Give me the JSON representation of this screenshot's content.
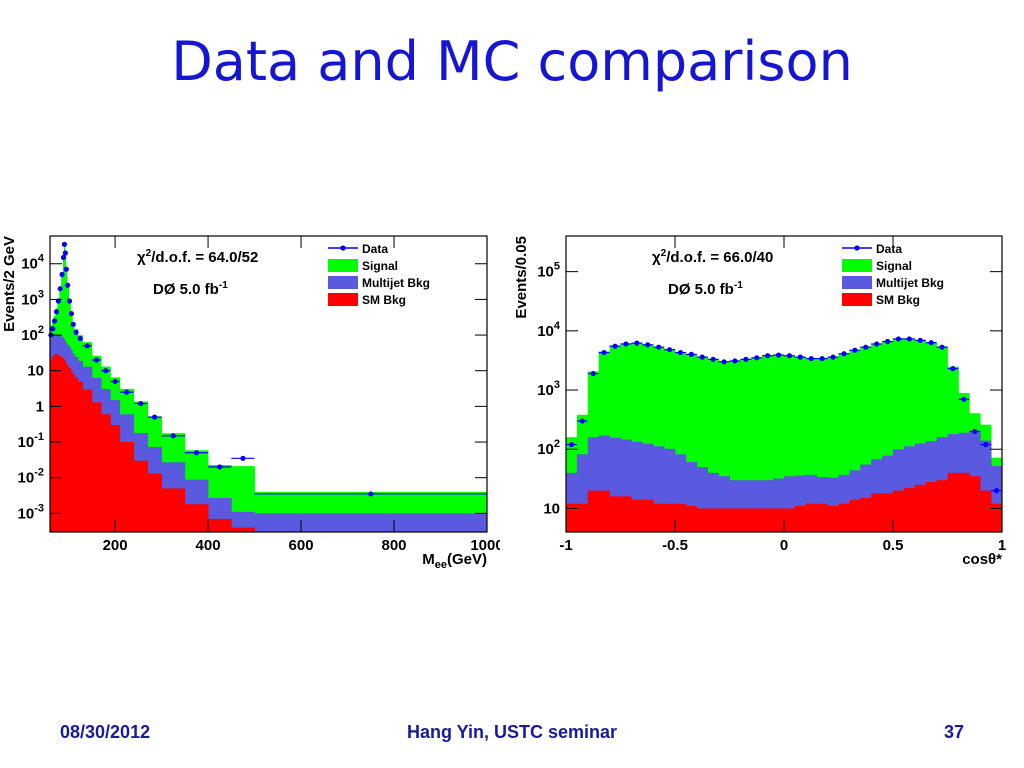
{
  "slide": {
    "title": "Data and MC comparison",
    "footer_date": "08/30/2012",
    "footer_center": "Hang Yin, USTC seminar",
    "page_number": "37"
  },
  "colors": {
    "title": "#1515d4",
    "signal": "#00ff00",
    "multijet": "#5a5ae0",
    "sm_bkg": "#ff0000",
    "data": "#0000ff"
  },
  "chart_data": [
    {
      "type": "histogram",
      "yscale": "log",
      "xlabel": "M_ee(GeV)",
      "xlabel_main": "M",
      "xlabel_sub": "ee",
      "xlabel_unit": "(GeV)",
      "ylabel": "Events/2 GeV",
      "xlim": [
        60,
        1000
      ],
      "ylim": [
        0.0003,
        60000
      ],
      "x_ticks": [
        200,
        400,
        600,
        800,
        1000
      ],
      "y_ticks": [
        {
          "value": 10000,
          "base": "10",
          "exp": "4"
        },
        {
          "value": 1000,
          "base": "10",
          "exp": "3"
        },
        {
          "value": 100,
          "base": "10",
          "exp": "2"
        },
        {
          "value": 10,
          "base": "10",
          "exp": ""
        },
        {
          "value": 1,
          "base": "1",
          "exp": ""
        },
        {
          "value": 0.1,
          "base": "10",
          "exp": "-1"
        },
        {
          "value": 0.01,
          "base": "10",
          "exp": "-2"
        },
        {
          "value": 0.001,
          "base": "10",
          "exp": "-3"
        }
      ],
      "chi2": {
        "prefix": "χ",
        "sup": "2",
        "rest": "/d.o.f. = 64.0/52"
      },
      "lumi": {
        "text": "DØ 5.0 fb",
        "sup": "-1"
      },
      "legend": [
        "Data",
        "Signal",
        "Multijet Bkg",
        "SM Bkg"
      ],
      "bin_edges": [
        60,
        64,
        68,
        72,
        76,
        80,
        84,
        88,
        90,
        92,
        94,
        96,
        100,
        104,
        108,
        112,
        120,
        130,
        150,
        170,
        190,
        210,
        240,
        270,
        300,
        350,
        400,
        450,
        500,
        1000
      ],
      "sm_bkg": [
        20,
        25,
        28,
        30,
        28,
        26,
        24,
        22,
        20,
        18,
        16,
        14,
        12,
        10,
        8,
        6.5,
        5,
        3,
        1.3,
        0.6,
        0.3,
        0.1,
        0.03,
        0.013,
        0.005,
        0.0018,
        0.0007,
        0.0004,
        0.0003
      ],
      "multijet": [
        60,
        65,
        70,
        75,
        75,
        70,
        65,
        60,
        55,
        50,
        45,
        40,
        35,
        28,
        22,
        18,
        14,
        10,
        5,
        2.5,
        1.2,
        0.5,
        0.15,
        0.06,
        0.022,
        0.007,
        0.002,
        0.0007,
        0.0007
      ],
      "signal": [
        100,
        150,
        250,
        450,
        900,
        2000,
        5000,
        15000,
        35000,
        20000,
        7000,
        2500,
        900,
        400,
        200,
        120,
        80,
        50,
        20,
        10,
        5,
        2.5,
        1.2,
        0.45,
        0.15,
        0.05,
        0.02,
        0.02,
        0.003
      ],
      "data": [
        {
          "x": 62,
          "y": 100
        },
        {
          "x": 66,
          "y": 150
        },
        {
          "x": 70,
          "y": 250
        },
        {
          "x": 74,
          "y": 450
        },
        {
          "x": 78,
          "y": 900
        },
        {
          "x": 82,
          "y": 2000
        },
        {
          "x": 86,
          "y": 5000
        },
        {
          "x": 89,
          "y": 15000
        },
        {
          "x": 91,
          "y": 35000
        },
        {
          "x": 93,
          "y": 20000
        },
        {
          "x": 95,
          "y": 7000
        },
        {
          "x": 98,
          "y": 2500
        },
        {
          "x": 102,
          "y": 900
        },
        {
          "x": 106,
          "y": 400
        },
        {
          "x": 110,
          "y": 200
        },
        {
          "x": 116,
          "y": 120
        },
        {
          "x": 125,
          "y": 80
        },
        {
          "x": 140,
          "y": 50
        },
        {
          "x": 160,
          "y": 20
        },
        {
          "x": 180,
          "y": 10
        },
        {
          "x": 200,
          "y": 5
        },
        {
          "x": 225,
          "y": 2.5
        },
        {
          "x": 255,
          "y": 1.2
        },
        {
          "x": 285,
          "y": 0.5
        },
        {
          "x": 325,
          "y": 0.15
        },
        {
          "x": 375,
          "y": 0.05
        },
        {
          "x": 425,
          "y": 0.02
        },
        {
          "x": 475,
          "y": 0.035
        },
        {
          "x": 750,
          "y": 0.0035
        }
      ]
    },
    {
      "type": "histogram",
      "yscale": "log",
      "xlabel": "cosθ*",
      "ylabel": "Events/0.05",
      "xlim": [
        -1,
        1
      ],
      "ylim": [
        4,
        400000
      ],
      "x_ticks": [
        -1,
        -0.5,
        0,
        0.5,
        1
      ],
      "y_ticks": [
        {
          "value": 100000,
          "base": "10",
          "exp": "5"
        },
        {
          "value": 10000,
          "base": "10",
          "exp": "4"
        },
        {
          "value": 1000,
          "base": "10",
          "exp": "3"
        },
        {
          "value": 100,
          "base": "10",
          "exp": "2"
        },
        {
          "value": 10,
          "base": "10",
          "exp": ""
        }
      ],
      "chi2": {
        "prefix": "χ",
        "sup": "2",
        "rest": "/d.o.f. = 66.0/40"
      },
      "lumi": {
        "text": "DØ 5.0 fb",
        "sup": "-1"
      },
      "legend": [
        "Data",
        "Signal",
        "Multijet Bkg",
        "SM Bkg"
      ],
      "bin_edges": [
        -1,
        -0.95,
        -0.9,
        -0.85,
        -0.8,
        -0.75,
        -0.7,
        -0.65,
        -0.6,
        -0.55,
        -0.5,
        -0.45,
        -0.4,
        -0.35,
        -0.3,
        -0.25,
        -0.2,
        -0.15,
        -0.1,
        -0.05,
        0,
        0.05,
        0.1,
        0.15,
        0.2,
        0.25,
        0.3,
        0.35,
        0.4,
        0.45,
        0.5,
        0.55,
        0.6,
        0.65,
        0.7,
        0.75,
        0.8,
        0.85,
        0.9,
        0.95,
        1
      ],
      "sm_bkg": [
        12,
        12,
        20,
        20,
        16,
        16,
        14,
        14,
        12,
        12,
        12,
        11,
        10,
        10,
        10,
        10,
        10,
        10,
        10,
        10,
        10,
        11,
        12,
        12,
        11,
        12,
        14,
        15,
        18,
        18,
        20,
        22,
        25,
        28,
        30,
        40,
        40,
        35,
        20,
        12
      ],
      "multijet": [
        28,
        70,
        140,
        150,
        140,
        130,
        120,
        110,
        100,
        90,
        70,
        50,
        40,
        30,
        25,
        20,
        20,
        20,
        20,
        22,
        25,
        25,
        25,
        22,
        22,
        25,
        30,
        40,
        50,
        60,
        80,
        90,
        100,
        110,
        130,
        140,
        150,
        170,
        120,
        40
      ],
      "signal": [
        120,
        300,
        1900,
        4300,
        5500,
        6000,
        6200,
        5800,
        5300,
        4800,
        4300,
        4000,
        3600,
        3300,
        3000,
        3100,
        3300,
        3500,
        3800,
        3900,
        3800,
        3600,
        3400,
        3400,
        3600,
        4100,
        4700,
        5300,
        6000,
        6600,
        7300,
        7300,
        6900,
        6300,
        5300,
        2300,
        700,
        200,
        120,
        20
      ],
      "data": [
        {
          "x": -0.975,
          "y": 120
        },
        {
          "x": -0.925,
          "y": 300
        },
        {
          "x": -0.875,
          "y": 1900
        },
        {
          "x": -0.825,
          "y": 4300
        },
        {
          "x": -0.775,
          "y": 5500
        },
        {
          "x": -0.725,
          "y": 6000
        },
        {
          "x": -0.675,
          "y": 6200
        },
        {
          "x": -0.625,
          "y": 5800
        },
        {
          "x": -0.575,
          "y": 5300
        },
        {
          "x": -0.525,
          "y": 4800
        },
        {
          "x": -0.475,
          "y": 4300
        },
        {
          "x": -0.425,
          "y": 4000
        },
        {
          "x": -0.375,
          "y": 3600
        },
        {
          "x": -0.325,
          "y": 3300
        },
        {
          "x": -0.275,
          "y": 3000
        },
        {
          "x": -0.225,
          "y": 3100
        },
        {
          "x": -0.175,
          "y": 3300
        },
        {
          "x": -0.125,
          "y": 3500
        },
        {
          "x": -0.075,
          "y": 3800
        },
        {
          "x": -0.025,
          "y": 3900
        },
        {
          "x": 0.025,
          "y": 3800
        },
        {
          "x": 0.075,
          "y": 3600
        },
        {
          "x": 0.125,
          "y": 3400
        },
        {
          "x": 0.175,
          "y": 3400
        },
        {
          "x": 0.225,
          "y": 3600
        },
        {
          "x": 0.275,
          "y": 4100
        },
        {
          "x": 0.325,
          "y": 4700
        },
        {
          "x": 0.375,
          "y": 5300
        },
        {
          "x": 0.425,
          "y": 6000
        },
        {
          "x": 0.475,
          "y": 6600
        },
        {
          "x": 0.525,
          "y": 7300
        },
        {
          "x": 0.575,
          "y": 7300
        },
        {
          "x": 0.625,
          "y": 6900
        },
        {
          "x": 0.675,
          "y": 6300
        },
        {
          "x": 0.725,
          "y": 5300
        },
        {
          "x": 0.775,
          "y": 2300
        },
        {
          "x": 0.825,
          "y": 700
        },
        {
          "x": 0.875,
          "y": 200
        },
        {
          "x": 0.925,
          "y": 120
        },
        {
          "x": 0.975,
          "y": 20
        }
      ]
    }
  ]
}
